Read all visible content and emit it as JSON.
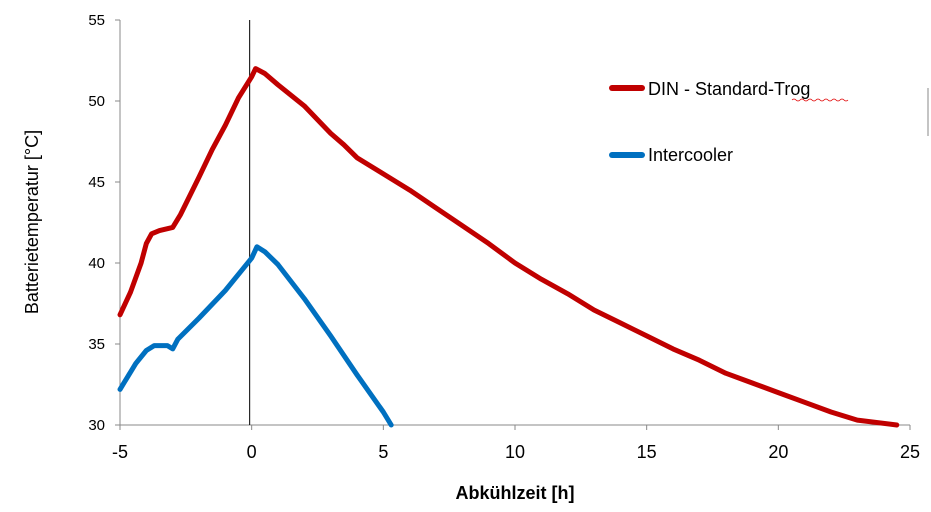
{
  "chart_data": {
    "type": "line",
    "title": "",
    "xlabel": "Abkühlzeit [h]",
    "ylabel": "Batterietemperatur [°C]",
    "xlim": [
      -5,
      25
    ],
    "ylim": [
      30,
      55
    ],
    "xticks": [
      -5,
      0,
      5,
      10,
      15,
      20,
      25
    ],
    "yticks": [
      30,
      35,
      40,
      45,
      50,
      55
    ],
    "grid": false,
    "vertical_reference_line_x": 0,
    "legend_position": "top-right",
    "series": [
      {
        "name": "DIN  - Standard-Trog",
        "color": "#c00000",
        "points": [
          [
            -5,
            36.8
          ],
          [
            -4.6,
            38.2
          ],
          [
            -4.2,
            40.0
          ],
          [
            -4.0,
            41.2
          ],
          [
            -3.8,
            41.8
          ],
          [
            -3.5,
            42.0
          ],
          [
            -3.0,
            42.2
          ],
          [
            -2.7,
            43.0
          ],
          [
            -2.0,
            45.3
          ],
          [
            -1.5,
            47.0
          ],
          [
            -1.0,
            48.5
          ],
          [
            -0.5,
            50.2
          ],
          [
            0.0,
            51.5
          ],
          [
            0.15,
            52.0
          ],
          [
            0.5,
            51.7
          ],
          [
            1.0,
            51.0
          ],
          [
            2.0,
            49.7
          ],
          [
            3.0,
            48.0
          ],
          [
            3.5,
            47.3
          ],
          [
            4.0,
            46.5
          ],
          [
            5.0,
            45.5
          ],
          [
            6.0,
            44.5
          ],
          [
            7.0,
            43.4
          ],
          [
            8.0,
            42.3
          ],
          [
            9.0,
            41.2
          ],
          [
            10.0,
            40.0
          ],
          [
            11.0,
            39.0
          ],
          [
            12.0,
            38.1
          ],
          [
            13.0,
            37.1
          ],
          [
            14.0,
            36.3
          ],
          [
            15.0,
            35.5
          ],
          [
            16.0,
            34.7
          ],
          [
            17.0,
            34.0
          ],
          [
            18.0,
            33.2
          ],
          [
            19.0,
            32.6
          ],
          [
            20.0,
            32.0
          ],
          [
            21.0,
            31.4
          ],
          [
            22.0,
            30.8
          ],
          [
            23.0,
            30.3
          ],
          [
            24.5,
            29.9
          ]
        ]
      },
      {
        "name": "Intercooler",
        "color": "#0070c0",
        "points": [
          [
            -5,
            32.2
          ],
          [
            -4.7,
            33.0
          ],
          [
            -4.4,
            33.8
          ],
          [
            -4.0,
            34.6
          ],
          [
            -3.7,
            34.9
          ],
          [
            -3.5,
            34.9
          ],
          [
            -3.2,
            34.9
          ],
          [
            -3.0,
            34.7
          ],
          [
            -2.8,
            35.3
          ],
          [
            -2.0,
            36.6
          ],
          [
            -1.0,
            38.3
          ],
          [
            0.0,
            40.3
          ],
          [
            0.2,
            41.0
          ],
          [
            0.5,
            40.7
          ],
          [
            1.0,
            39.9
          ],
          [
            2.0,
            37.8
          ],
          [
            3.0,
            35.5
          ],
          [
            4.0,
            33.1
          ],
          [
            5.0,
            30.8
          ],
          [
            5.3,
            30.0
          ]
        ]
      }
    ]
  }
}
